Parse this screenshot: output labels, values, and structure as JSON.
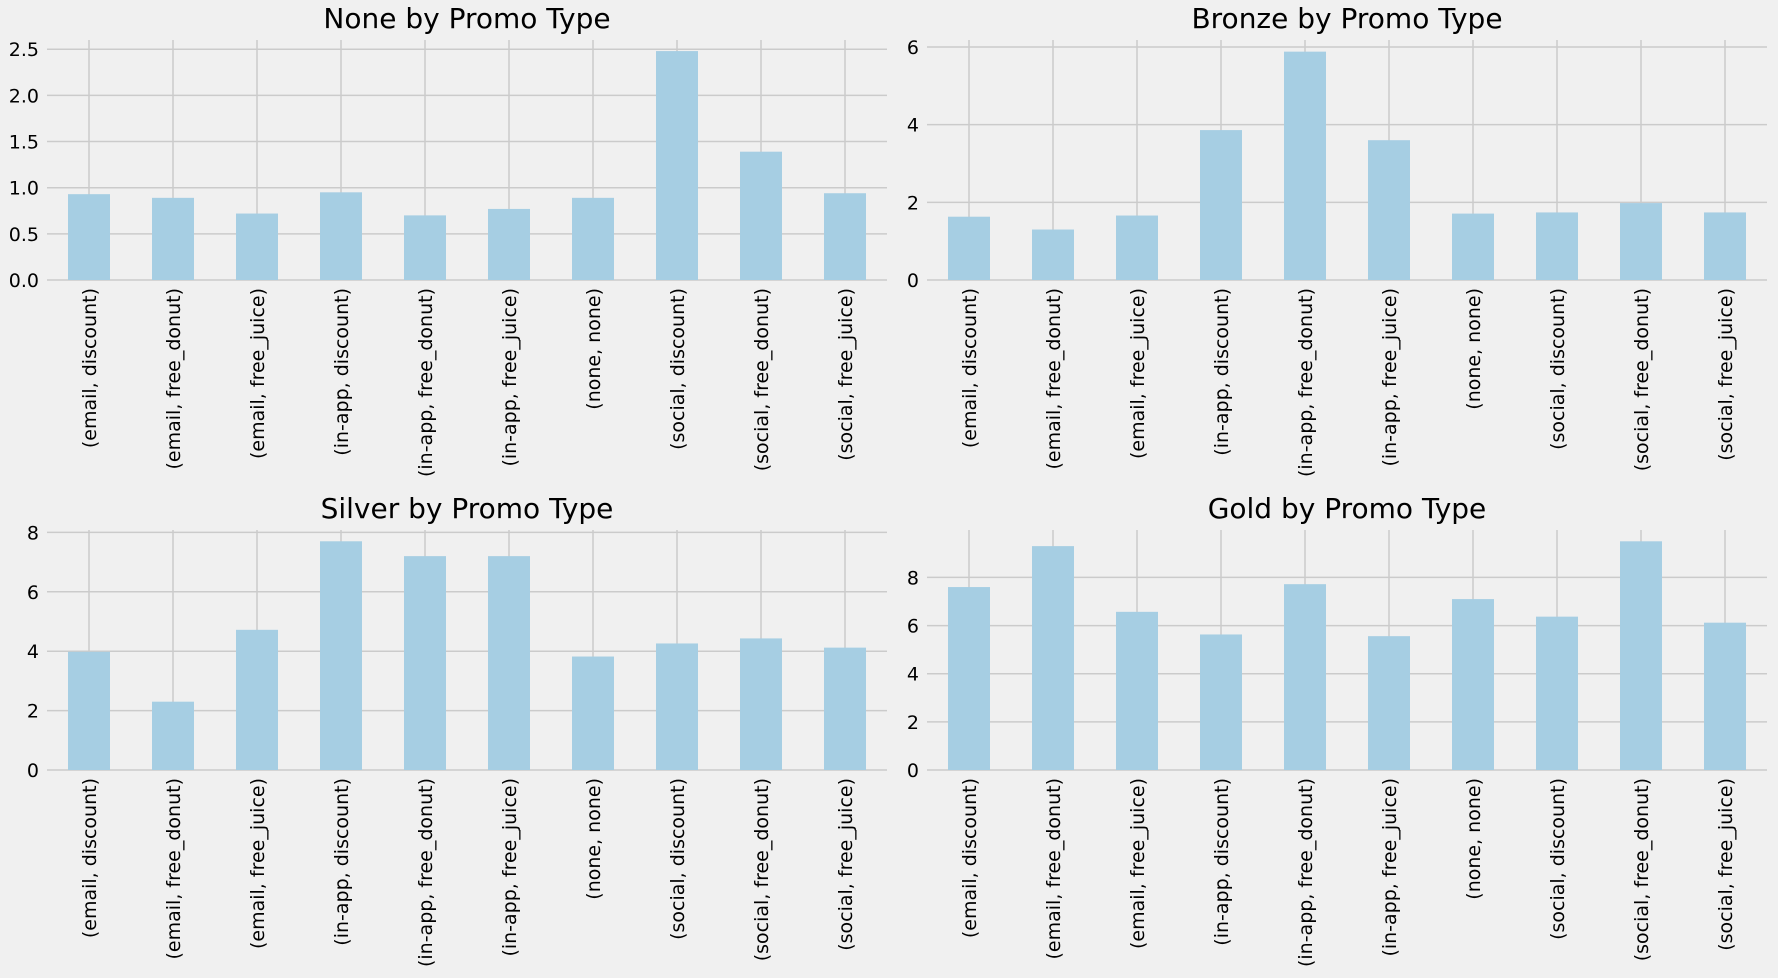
{
  "colors": {
    "background": "#f0f0f0",
    "bar": "#a6cee3",
    "grid": "#cbcbcb"
  },
  "chart_data": [
    {
      "type": "bar",
      "title": "None by Promo Type",
      "xlabel": "",
      "ylabel": "",
      "grid": true,
      "categories": [
        "(email, discount)",
        "(email, free_donut)",
        "(email, free_juice)",
        "(in-app, discount)",
        "(in-app, free_donut)",
        "(in-app, free_juice)",
        "(none, none)",
        "(social, discount)",
        "(social, free_donut)",
        "(social, free_juice)"
      ],
      "values": [
        0.93,
        0.89,
        0.72,
        0.95,
        0.7,
        0.77,
        0.89,
        2.48,
        1.39,
        0.94
      ],
      "ylim": [
        0,
        2.6
      ],
      "yticks": [
        0,
        0.5,
        1.0,
        1.5,
        2.0,
        2.5
      ],
      "ytick_labels": [
        "0.0",
        "0.5",
        "1.0",
        "1.5",
        "2.0",
        "2.5"
      ]
    },
    {
      "type": "bar",
      "title": "Bronze by Promo Type",
      "xlabel": "",
      "ylabel": "",
      "grid": true,
      "categories": [
        "(email, discount)",
        "(email, free_donut)",
        "(email, free_juice)",
        "(in-app, discount)",
        "(in-app, free_donut)",
        "(in-app, free_juice)",
        "(none, none)",
        "(social, discount)",
        "(social, free_donut)",
        "(social, free_juice)"
      ],
      "values": [
        1.63,
        1.3,
        1.66,
        3.86,
        5.88,
        3.6,
        1.71,
        1.74,
        1.98,
        1.74
      ],
      "ylim": [
        0,
        6.18
      ],
      "yticks": [
        0,
        2,
        4,
        6
      ],
      "ytick_labels": [
        "0",
        "2",
        "4",
        "6"
      ]
    },
    {
      "type": "bar",
      "title": "Silver by Promo Type",
      "xlabel": "",
      "ylabel": "",
      "grid": true,
      "categories": [
        "(email, discount)",
        "(email, free_donut)",
        "(email, free_juice)",
        "(in-app, discount)",
        "(in-app, free_donut)",
        "(in-app, free_juice)",
        "(none, none)",
        "(social, discount)",
        "(social, free_donut)",
        "(social, free_juice)"
      ],
      "values": [
        3.98,
        2.3,
        4.72,
        7.7,
        7.2,
        7.2,
        3.82,
        4.26,
        4.43,
        4.12
      ],
      "ylim": [
        0,
        8.08
      ],
      "yticks": [
        0,
        2,
        4,
        6,
        8
      ],
      "ytick_labels": [
        "0",
        "2",
        "4",
        "6",
        "8"
      ]
    },
    {
      "type": "bar",
      "title": "Gold by Promo Type",
      "xlabel": "",
      "ylabel": "",
      "grid": true,
      "categories": [
        "(email, discount)",
        "(email, free_donut)",
        "(email, free_juice)",
        "(in-app, discount)",
        "(in-app, free_donut)",
        "(in-app, free_juice)",
        "(none, none)",
        "(social, discount)",
        "(social, free_donut)",
        "(social, free_juice)"
      ],
      "values": [
        7.6,
        9.3,
        6.57,
        5.63,
        7.72,
        5.56,
        7.1,
        6.37,
        9.5,
        6.12
      ],
      "ylim": [
        0,
        9.97
      ],
      "yticks": [
        0,
        2,
        4,
        6,
        8
      ],
      "ytick_labels": [
        "0",
        "2",
        "4",
        "6",
        "8"
      ]
    }
  ]
}
